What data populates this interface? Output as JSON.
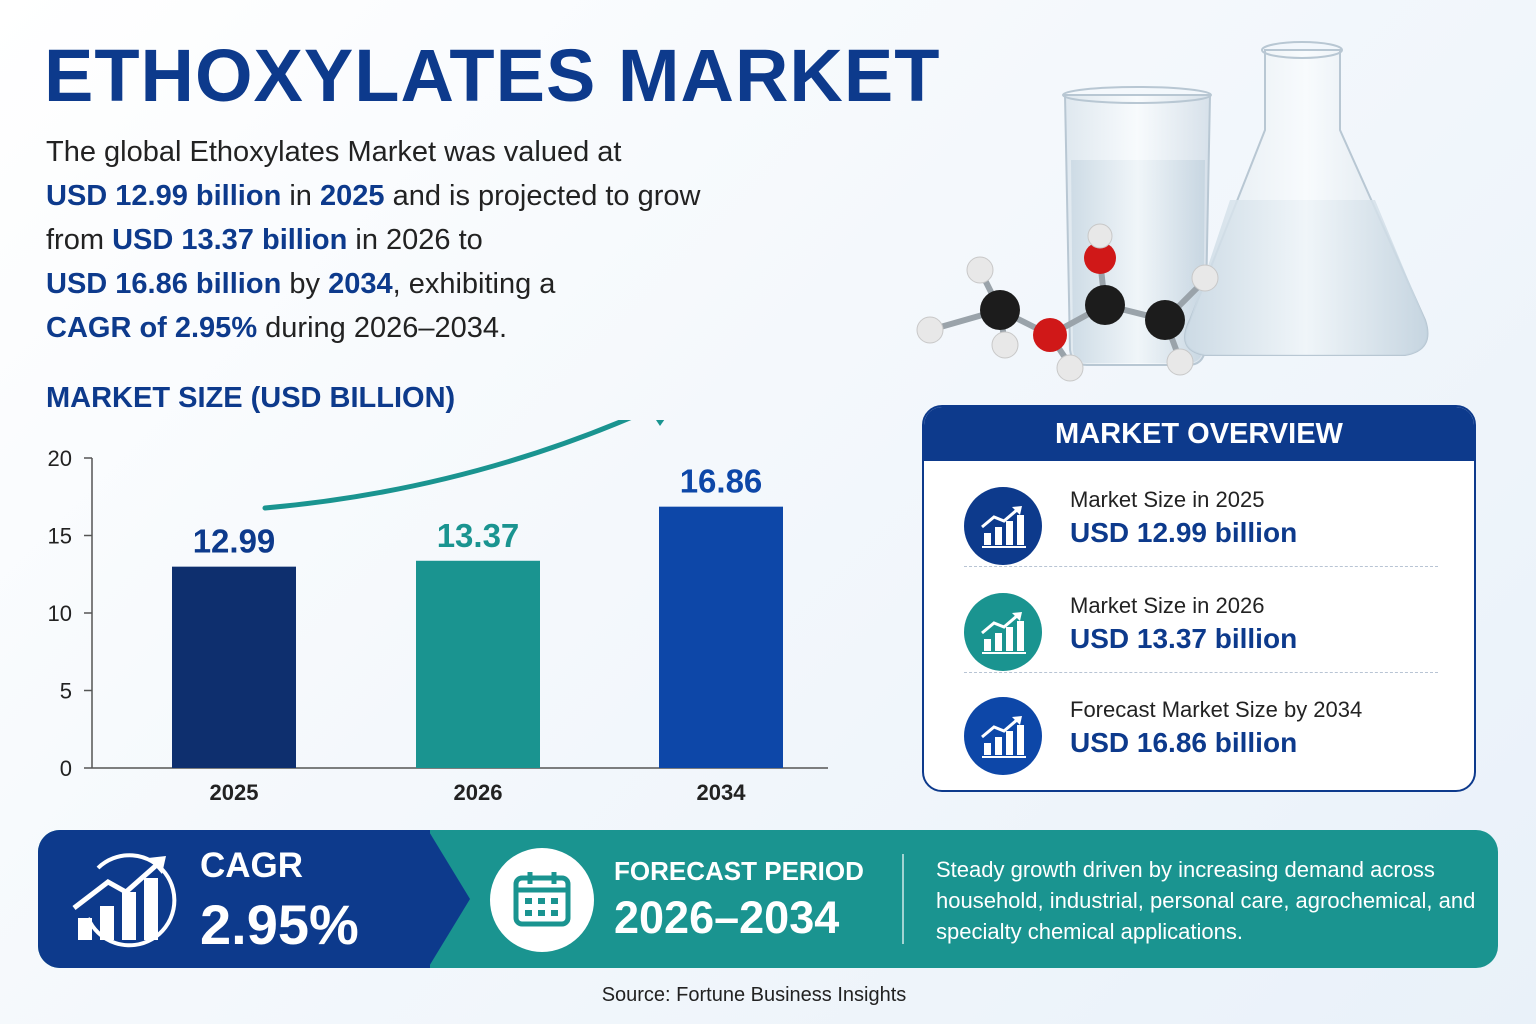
{
  "title": "ETHOXYLATES MARKET",
  "intro": {
    "p1": "The global Ethoxylates Market was valued at",
    "v1": "USD 12.99 billion",
    "p2": "in",
    "y1": "2025",
    "p3": "and is projected to grow from",
    "v2": "USD 13.37 billion",
    "p4": "in 2026 to",
    "v3": "USD 16.86 billion",
    "p5": "by",
    "y2": "2034",
    "p6": ", exhibiting a",
    "v4": "CAGR of 2.95%",
    "p7": "during 2026–2034."
  },
  "chart_title": "MARKET SIZE (USD BILLION)",
  "chart_data": {
    "type": "bar",
    "title": "MARKET SIZE (USD BILLION)",
    "categories": [
      "2025",
      "2026",
      "2034"
    ],
    "values": [
      12.99,
      13.37,
      16.86
    ],
    "value_labels": [
      "12.99",
      "13.37",
      "16.86"
    ],
    "ylim": [
      0,
      20
    ],
    "yticks": [
      0,
      5,
      10,
      15,
      20
    ],
    "ytick_labels": [
      "0",
      "5",
      "10",
      "15",
      "20"
    ],
    "bar_colors": [
      "#0e2f6e",
      "#1a9490",
      "#0d47a8"
    ],
    "label_colors": [
      "#0d3a8c",
      "#1a9490",
      "#0d47a8"
    ],
    "grid": false,
    "trend_arrow": true
  },
  "overview": {
    "heading": "MARKET OVERVIEW",
    "items": [
      {
        "label": "Market Size in 2025",
        "value": "USD 12.99 billion",
        "icon": "growth-chart-icon",
        "color": "#0d3a8c"
      },
      {
        "label": "Market Size in 2026",
        "value": "USD 13.37 billion",
        "icon": "growth-chart-icon",
        "color": "#1a9490"
      },
      {
        "label": "Forecast Market Size by 2034",
        "value": "USD 16.86 billion",
        "icon": "growth-chart-icon",
        "color": "#0d47a8"
      }
    ]
  },
  "banner": {
    "cagr_label": "CAGR",
    "cagr_value": "2.95%",
    "forecast_label": "FORECAST PERIOD",
    "forecast_value": "2026–2034",
    "description": "Steady growth driven by increasing demand across household, industrial, personal care, agrochemical, and specialty chemical applications."
  },
  "source": "Source: Fortune Business Insights",
  "colors": {
    "primary": "#0d3a8c",
    "teal": "#1a9490",
    "blue": "#0d47a8"
  }
}
